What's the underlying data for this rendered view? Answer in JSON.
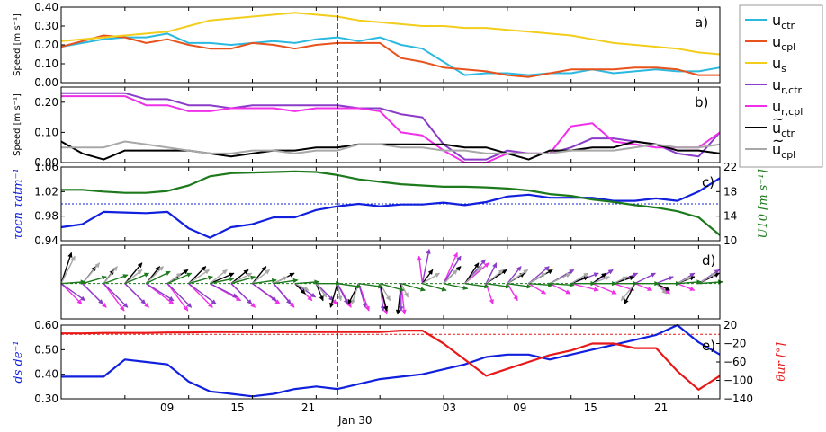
{
  "x_ticks": [
    "09",
    "15",
    "21",
    "Jan 30",
    "03",
    "09",
    "15",
    "21"
  ],
  "colors": {
    "u_ctr": "#2cb9e0",
    "u_cpl": "#e8521c",
    "u_s": "#f2cd1b",
    "ur_ctr": "#8a3cc8",
    "ur_cpl": "#f030e8",
    "ut_ctr": "#000000",
    "ut_cpl": "#a8a8a8",
    "blue": "#1020dd",
    "green": "#1c7a1c",
    "red": "#e81818"
  },
  "legend": [
    {
      "key": "u_ctr",
      "base": "u",
      "sub": "ctr",
      "tilde": false
    },
    {
      "key": "u_cpl",
      "base": "u",
      "sub": "cpl",
      "tilde": false
    },
    {
      "key": "u_s",
      "base": "u",
      "sub": "s",
      "tilde": false
    },
    {
      "key": "ur_ctr",
      "base": "u",
      "sub": "r,ctr",
      "tilde": false
    },
    {
      "key": "ur_cpl",
      "base": "u",
      "sub": "r,cpl",
      "tilde": false
    },
    {
      "key": "ut_ctr",
      "base": "u",
      "sub": "ctr",
      "tilde": true
    },
    {
      "key": "ut_cpl",
      "base": "u",
      "sub": "cpl",
      "tilde": true
    }
  ],
  "chart_data": [
    {
      "panel": "a)",
      "type": "line",
      "ylabel": "Speed",
      "ylabel_units": "[m s⁻¹]",
      "ylim": [
        0.0,
        0.4
      ],
      "yticks": [
        "0.00",
        "0.10",
        "0.20",
        "0.30",
        "0.40"
      ],
      "x": [
        0,
        2,
        4,
        6,
        8,
        10,
        12,
        14,
        16,
        18,
        20,
        22,
        24,
        26,
        28,
        30,
        32,
        34,
        36,
        38,
        40,
        42,
        44,
        46,
        48,
        50,
        52,
        54,
        56,
        58,
        60,
        62
      ],
      "series": [
        {
          "key": "u_ctr",
          "values": [
            0.19,
            0.21,
            0.23,
            0.24,
            0.24,
            0.26,
            0.21,
            0.21,
            0.2,
            0.21,
            0.22,
            0.21,
            0.23,
            0.24,
            0.22,
            0.24,
            0.2,
            0.18,
            0.11,
            0.04,
            0.05,
            0.05,
            0.04,
            0.05,
            0.05,
            0.07,
            0.05,
            0.06,
            0.07,
            0.06,
            0.06,
            0.08
          ]
        },
        {
          "key": "u_cpl",
          "values": [
            0.19,
            0.22,
            0.25,
            0.24,
            0.21,
            0.23,
            0.2,
            0.18,
            0.18,
            0.21,
            0.2,
            0.18,
            0.2,
            0.21,
            0.21,
            0.21,
            0.13,
            0.11,
            0.08,
            0.07,
            0.06,
            0.04,
            0.03,
            0.05,
            0.07,
            0.07,
            0.07,
            0.08,
            0.08,
            0.07,
            0.04,
            0.04
          ]
        },
        {
          "key": "u_s",
          "values": [
            0.22,
            0.23,
            0.24,
            0.25,
            0.26,
            0.27,
            0.3,
            0.33,
            0.34,
            0.35,
            0.36,
            0.37,
            0.36,
            0.35,
            0.33,
            0.32,
            0.31,
            0.3,
            0.3,
            0.29,
            0.29,
            0.28,
            0.27,
            0.26,
            0.25,
            0.23,
            0.21,
            0.2,
            0.19,
            0.18,
            0.16,
            0.15
          ]
        }
      ]
    },
    {
      "panel": "b)",
      "type": "line",
      "ylabel": "Speed",
      "ylabel_units": "[m s⁻¹]",
      "ylim": [
        0.0,
        0.25
      ],
      "yticks": [
        "0.00",
        "0.10",
        "0.20"
      ],
      "x": [
        0,
        2,
        4,
        6,
        8,
        10,
        12,
        14,
        16,
        18,
        20,
        22,
        24,
        26,
        28,
        30,
        32,
        34,
        36,
        38,
        40,
        42,
        44,
        46,
        48,
        50,
        52,
        54,
        56,
        58,
        60,
        62
      ],
      "series": [
        {
          "key": "ur_ctr",
          "values": [
            0.23,
            0.23,
            0.23,
            0.23,
            0.21,
            0.21,
            0.19,
            0.19,
            0.18,
            0.19,
            0.19,
            0.19,
            0.19,
            0.19,
            0.18,
            0.18,
            0.16,
            0.15,
            0.06,
            0.01,
            0.01,
            0.04,
            0.03,
            0.03,
            0.05,
            0.08,
            0.08,
            0.07,
            0.06,
            0.03,
            0.02,
            0.1
          ]
        },
        {
          "key": "ur_cpl",
          "values": [
            0.22,
            0.22,
            0.22,
            0.22,
            0.19,
            0.19,
            0.17,
            0.17,
            0.18,
            0.18,
            0.18,
            0.17,
            0.18,
            0.18,
            0.18,
            0.17,
            0.1,
            0.09,
            0.04,
            0.0,
            0.0,
            0.03,
            0.03,
            0.03,
            0.12,
            0.13,
            0.07,
            0.06,
            0.05,
            0.05,
            0.05,
            0.1
          ]
        },
        {
          "key": "ut_ctr",
          "values": [
            0.07,
            0.03,
            0.01,
            0.04,
            0.04,
            0.04,
            0.04,
            0.03,
            0.02,
            0.03,
            0.04,
            0.04,
            0.05,
            0.05,
            0.06,
            0.06,
            0.06,
            0.06,
            0.06,
            0.05,
            0.05,
            0.03,
            0.01,
            0.04,
            0.04,
            0.05,
            0.05,
            0.07,
            0.06,
            0.04,
            0.04,
            0.03
          ]
        },
        {
          "key": "ut_cpl",
          "values": [
            0.05,
            0.05,
            0.05,
            0.07,
            0.06,
            0.05,
            0.04,
            0.03,
            0.03,
            0.04,
            0.04,
            0.03,
            0.04,
            0.04,
            0.06,
            0.06,
            0.05,
            0.05,
            0.04,
            0.04,
            0.03,
            0.03,
            0.03,
            0.03,
            0.04,
            0.04,
            0.04,
            0.05,
            0.06,
            0.05,
            0.05,
            0.06
          ]
        }
      ]
    },
    {
      "panel": "c)",
      "type": "line",
      "ylabel_left": "τocn τatm⁻¹",
      "ylabel_right": "U10 [m s⁻¹]",
      "ylim_left": [
        0.94,
        1.06
      ],
      "yticks_left": [
        "0.94",
        "0.98",
        "1.02",
        "1.06"
      ],
      "ylim_right": [
        10,
        22
      ],
      "yticks_right": [
        "10",
        "14",
        "18",
        "22"
      ],
      "reference_line": 1.0,
      "x": [
        0,
        2,
        4,
        6,
        8,
        10,
        12,
        14,
        16,
        18,
        20,
        22,
        24,
        26,
        28,
        30,
        32,
        34,
        36,
        38,
        40,
        42,
        44,
        46,
        48,
        50,
        52,
        54,
        56,
        58,
        60,
        62
      ],
      "series": [
        {
          "key": "blue",
          "axis": "left",
          "values": [
            0.962,
            0.967,
            0.987,
            0.986,
            0.985,
            0.987,
            0.96,
            0.945,
            0.962,
            0.967,
            0.978,
            0.978,
            0.99,
            0.996,
            1.0,
            0.996,
            0.999,
            0.999,
            1.002,
            0.998,
            1.003,
            1.012,
            1.015,
            1.01,
            1.01,
            1.01,
            1.005,
            1.005,
            1.009,
            1.005,
            1.02,
            1.042
          ]
        },
        {
          "key": "green",
          "axis": "right",
          "values": [
            18.3,
            18.3,
            18.0,
            17.8,
            17.8,
            18.1,
            19.0,
            20.5,
            21.0,
            21.1,
            21.2,
            21.3,
            21.2,
            20.7,
            20.0,
            19.6,
            19.2,
            19.0,
            18.8,
            18.8,
            18.7,
            18.5,
            18.2,
            17.6,
            17.3,
            16.7,
            16.3,
            15.8,
            15.4,
            14.8,
            13.8,
            10.9
          ]
        }
      ]
    },
    {
      "panel": "d)",
      "type": "vector",
      "series": [
        {
          "key": "ur_cpl",
          "u": [
            0.6,
            0.7,
            0.6,
            0.7,
            0.8,
            0.6,
            0.7,
            0.9,
            0.7,
            0.8,
            0.6,
            0.5,
            0.6,
            0.4,
            0.3,
            0.2,
            0.1,
            -0.1,
            0.4,
            0.7,
            0.2,
            0.3,
            0.5,
            0.6,
            0.8,
            0.7,
            0.6,
            0.5,
            0.4,
            0.5,
            0.6
          ],
          "v": [
            -0.6,
            -0.7,
            -0.8,
            -0.7,
            -0.6,
            -0.8,
            -0.7,
            -0.5,
            -0.7,
            -0.6,
            -0.7,
            -0.5,
            -0.6,
            -0.7,
            -0.8,
            -0.9,
            -0.9,
            0.8,
            0.9,
            0.6,
            -0.6,
            -0.5,
            -0.3,
            -0.3,
            -0.2,
            -0.3,
            -0.2,
            -0.2,
            -0.3,
            -0.2,
            0.3
          ]
        },
        {
          "key": "ur_ctr",
          "u": [
            0.7,
            0.6,
            0.7,
            0.6,
            0.8,
            0.7,
            0.8,
            0.8,
            0.6,
            0.7,
            0.5,
            0.6,
            0.5,
            0.3,
            0.2,
            0.1,
            0.0,
            0.2,
            0.5,
            0.6,
            0.3,
            0.4,
            0.6,
            0.7,
            0.8,
            0.6,
            0.7,
            0.6,
            0.5,
            0.5,
            0.6
          ],
          "v": [
            -0.5,
            -0.6,
            -0.7,
            -0.6,
            -0.5,
            -0.7,
            -0.6,
            -0.4,
            -0.6,
            -0.5,
            -0.6,
            -0.4,
            -0.5,
            -0.6,
            -0.7,
            -0.8,
            -0.8,
            1.0,
            0.8,
            0.7,
            0.6,
            0.5,
            0.5,
            0.4,
            0.3,
            0.4,
            0.3,
            0.3,
            0.2,
            0.3,
            0.4
          ]
        },
        {
          "key": "ut_ctr",
          "u": [
            0.3,
            0.4,
            0.3,
            0.5,
            0.4,
            0.6,
            0.5,
            0.7,
            0.5,
            0.4,
            0.6,
            0.3,
            0.2,
            -0.2,
            -0.3,
            0.2,
            -0.1,
            0.3,
            0.5,
            0.4,
            0.6,
            0.5,
            0.7,
            0.6,
            0.5,
            0.4,
            0.6,
            -0.3,
            0.4,
            0.5,
            0.6
          ],
          "v": [
            0.9,
            0.5,
            0.4,
            0.6,
            0.5,
            0.4,
            0.5,
            0.3,
            0.4,
            0.5,
            0.3,
            -0.3,
            -0.5,
            -0.7,
            -0.6,
            -0.8,
            -0.9,
            0.4,
            0.5,
            0.6,
            0.4,
            0.3,
            0.4,
            0.3,
            0.2,
            0.3,
            0.2,
            -0.6,
            -0.2,
            0.2,
            0.3
          ]
        },
        {
          "key": "ut_cpl",
          "u": [
            0.4,
            0.5,
            0.4,
            0.5,
            0.5,
            0.4,
            0.6,
            0.5,
            0.6,
            0.5,
            0.4,
            0.4,
            0.3,
            0.1,
            -0.2,
            0.3,
            0.2,
            0.5,
            0.4,
            0.5,
            0.5,
            0.6,
            0.5,
            0.6,
            0.5,
            0.5,
            0.4,
            -0.4,
            0.3,
            0.4,
            0.5
          ],
          "v": [
            0.8,
            0.6,
            0.5,
            0.4,
            0.5,
            0.3,
            0.4,
            0.4,
            0.3,
            0.4,
            0.2,
            -0.2,
            -0.4,
            -0.5,
            -0.6,
            -0.5,
            -0.4,
            0.3,
            0.4,
            0.5,
            0.4,
            0.4,
            0.3,
            0.3,
            0.3,
            0.2,
            0.2,
            -0.5,
            -0.3,
            0.2,
            0.3
          ]
        },
        {
          "key": "green",
          "u": [
            0.7,
            0.7,
            0.7,
            0.7,
            0.7,
            0.7,
            0.7,
            0.7,
            0.7,
            0.7,
            0.7,
            0.7,
            0.7,
            0.7,
            0.7,
            0.7,
            0.7,
            0.7,
            0.7,
            0.7,
            0.7,
            0.7,
            0.7,
            0.7,
            0.7,
            0.7,
            0.7,
            0.7,
            0.7,
            0.7,
            0.7
          ],
          "v": [
            0.05,
            0.2,
            0.25,
            0.3,
            0.35,
            0.3,
            0.2,
            0.15,
            0.2,
            0.1,
            0.1,
            0.05,
            0.0,
            -0.1,
            -0.1,
            -0.2,
            -0.2,
            -0.2,
            -0.15,
            -0.1,
            -0.1,
            -0.1,
            -0.05,
            -0.05,
            0.0,
            0.0,
            0.0,
            0.0,
            0.0,
            0.05,
            0.05
          ]
        }
      ]
    },
    {
      "panel": "e)",
      "type": "line",
      "ylabel_left": "ds de⁻¹",
      "ylabel_right": "θur [°]",
      "ylim_left": [
        0.3,
        0.6
      ],
      "yticks_left": [
        "0.30",
        "0.40",
        "0.50",
        "0.60"
      ],
      "ylim_right": [
        -140,
        20
      ],
      "yticks_right": [
        "20",
        "−20",
        "−60",
        "−100",
        "−140"
      ],
      "reference_line_right": 0,
      "x": [
        0,
        2,
        4,
        6,
        8,
        10,
        12,
        14,
        16,
        18,
        20,
        22,
        24,
        26,
        28,
        30,
        32,
        34,
        36,
        38,
        40,
        42,
        44,
        46,
        48,
        50,
        52,
        54,
        56,
        58,
        60,
        62
      ],
      "series": [
        {
          "key": "blue",
          "axis": "left",
          "values": [
            0.39,
            0.39,
            0.39,
            0.46,
            0.45,
            0.44,
            0.37,
            0.33,
            0.32,
            0.31,
            0.32,
            0.34,
            0.35,
            0.34,
            0.36,
            0.38,
            0.39,
            0.4,
            0.42,
            0.44,
            0.47,
            0.48,
            0.48,
            0.46,
            0.48,
            0.5,
            0.52,
            0.54,
            0.56,
            0.6,
            0.53,
            0.48
          ]
        },
        {
          "key": "red",
          "axis": "right",
          "values": [
            2,
            2,
            3,
            3,
            3,
            4,
            4,
            5,
            5,
            5,
            5,
            5,
            5,
            5,
            5,
            5,
            8,
            8,
            -20,
            -55,
            -90,
            -75,
            -60,
            -45,
            -35,
            -20,
            -20,
            -30,
            -30,
            -80,
            -120,
            -90
          ]
        }
      ]
    }
  ]
}
